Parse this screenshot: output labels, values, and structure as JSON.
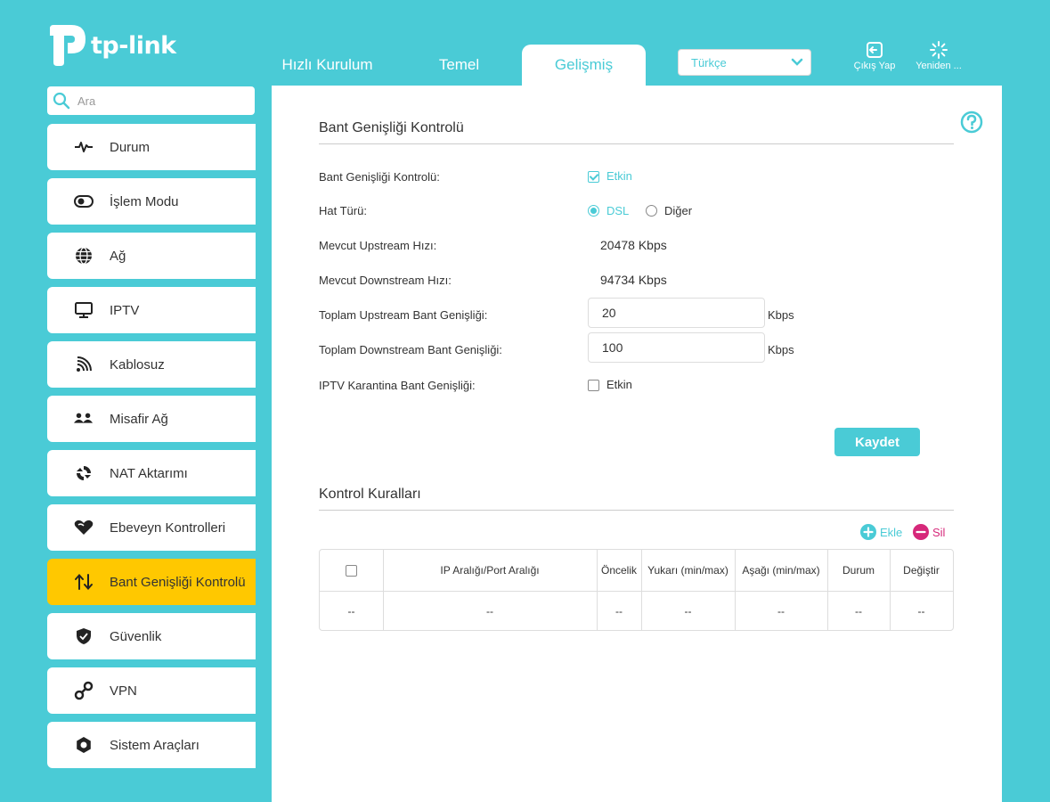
{
  "brand": {
    "logo_text": "tp-link"
  },
  "tabs": [
    {
      "label": "Hızlı Kurulum",
      "active": false
    },
    {
      "label": "Temel",
      "active": false
    },
    {
      "label": "Gelişmiş",
      "active": true
    }
  ],
  "language": {
    "selected": "Türkçe"
  },
  "header_actions": {
    "logout": "Çıkış Yap",
    "reboot": "Yeniden ..."
  },
  "search": {
    "placeholder": "Ara"
  },
  "sidebar": {
    "items": [
      {
        "label": "Durum",
        "icon": "pulse-icon"
      },
      {
        "label": "İşlem Modu",
        "icon": "toggle-icon"
      },
      {
        "label": "Ağ",
        "icon": "globe-icon"
      },
      {
        "label": "IPTV",
        "icon": "monitor-icon"
      },
      {
        "label": "Kablosuz",
        "icon": "wifi-icon"
      },
      {
        "label": "Misafir Ağ",
        "icon": "guests-icon"
      },
      {
        "label": "NAT Aktarımı",
        "icon": "nat-icon"
      },
      {
        "label": "Ebeveyn Kontrolleri",
        "icon": "heart-icon"
      },
      {
        "label": "Bant Genişliği Kontrolü",
        "icon": "arrows-updown-icon",
        "active": true
      },
      {
        "label": "Güvenlik",
        "icon": "shield-icon"
      },
      {
        "label": "VPN",
        "icon": "link-icon"
      },
      {
        "label": "Sistem Araçları",
        "icon": "gear-icon"
      }
    ]
  },
  "bandwidth": {
    "title": "Bant Genişliği Kontrolü",
    "enable_label": "Bant Genişliği Kontrolü:",
    "enable_text": "Etkin",
    "enable_checked": true,
    "line_type_label": "Hat Türü:",
    "line_type_options": [
      "DSL",
      "Diğer"
    ],
    "line_type_selected": "DSL",
    "upstream_label": "Mevcut Upstream Hızı:",
    "upstream_value": "20478 Kbps",
    "downstream_label": "Mevcut Downstream Hızı:",
    "downstream_value": "94734 Kbps",
    "total_up_label": "Toplam Upstream Bant Genişliği:",
    "total_up_value": "20",
    "total_down_label": "Toplam Downstream Bant Genişliği:",
    "total_down_value": "100",
    "unit": "Kbps",
    "iptv_label": "IPTV Karantina Bant Genişliği:",
    "iptv_text": "Etkin",
    "iptv_checked": false,
    "save_label": "Kaydet"
  },
  "rules": {
    "title": "Kontrol Kuralları",
    "add_label": "Ekle",
    "delete_label": "Sil",
    "columns": [
      "IP Aralığı/Port Aralığı",
      "Öncelik",
      "Yukarı (min/max)",
      "Aşağı (min/max)",
      "Durum",
      "Değiştir"
    ],
    "row": [
      "--",
      "--",
      "--",
      "--",
      "--",
      "--",
      "--"
    ]
  },
  "colors": {
    "accent": "#4acbd6",
    "active_nav": "#ffc800",
    "add": "#4acbd6",
    "delete": "#d6287a"
  }
}
